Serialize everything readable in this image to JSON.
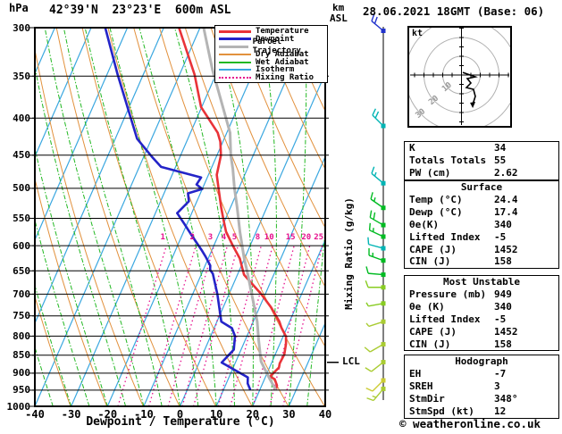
{
  "header": {
    "pressure_unit": "hPa",
    "title": "42°39'N  23°23'E  600m ASL",
    "altitude_unit": "km",
    "altitude_ref": "ASL",
    "date": "28.06.2021 18GMT (Base: 06)"
  },
  "legend": {
    "items": [
      {
        "label": "Temperature",
        "color": "#e93338",
        "style": "solid",
        "thick": 3
      },
      {
        "label": "Dewpoint",
        "color": "#2424c8",
        "style": "solid",
        "thick": 3
      },
      {
        "label": "Parcel Trajectory",
        "color": "#b4b4b4",
        "style": "solid",
        "thick": 3
      },
      {
        "label": "Dry Adiabat",
        "color": "#e2913d",
        "style": "solid",
        "thick": 1
      },
      {
        "label": "Wet Adiabat",
        "color": "#22b822",
        "style": "solid",
        "thick": 1
      },
      {
        "label": "Isotherm",
        "color": "#3aa7e0",
        "style": "solid",
        "thick": 1
      },
      {
        "label": "Mixing Ratio",
        "color": "#e6118e",
        "style": "dotted",
        "thick": 1
      }
    ]
  },
  "axes": {
    "x_label": "Dewpoint / Temperature (°C)",
    "x_ticks": [
      -40,
      -30,
      -20,
      -10,
      0,
      10,
      20,
      30,
      40
    ],
    "pressure_ticks": [
      300,
      350,
      400,
      450,
      500,
      550,
      600,
      650,
      700,
      750,
      800,
      850,
      900,
      950,
      1000
    ],
    "mixing_ratio_label": "Mixing Ratio (g/kg)",
    "mixing_ratio_values": [
      1,
      2,
      3,
      4,
      5,
      8,
      10,
      15,
      20,
      25
    ],
    "lcl_label": "LCL"
  },
  "chart_data": {
    "type": "skewt-log-p sounding",
    "pressure_range_hpa": [
      300,
      1000
    ],
    "temperature_range_c": [
      -40,
      40
    ],
    "isotherm_step_c": 10,
    "dry_adiabat_step_k": 10,
    "wet_adiabat_step_c": 5,
    "series": [
      {
        "name": "temperature",
        "color": "#e93338",
        "points_p_t": [
          [
            949,
            24.4
          ],
          [
            936,
            24.2
          ],
          [
            917,
            22.8
          ],
          [
            910,
            21.2
          ],
          [
            884,
            22.6
          ],
          [
            872,
            22.3
          ],
          [
            848,
            22.5
          ],
          [
            820,
            21.7
          ],
          [
            801,
            20.8
          ],
          [
            779,
            18.5
          ],
          [
            764,
            17.2
          ],
          [
            730,
            13.2
          ],
          [
            700,
            8.9
          ],
          [
            658,
            1.8
          ],
          [
            625,
            -1.3
          ],
          [
            599,
            -4.9
          ],
          [
            574,
            -8.3
          ],
          [
            553,
            -10.4
          ],
          [
            531,
            -12.6
          ],
          [
            500,
            -15.6
          ],
          [
            479,
            -17.7
          ],
          [
            450,
            -18.9
          ],
          [
            431,
            -20.7
          ],
          [
            419,
            -22.5
          ],
          [
            386,
            -30.2
          ],
          [
            348,
            -35.9
          ],
          [
            300,
            -45.8
          ]
        ]
      },
      {
        "name": "dewpoint",
        "color": "#2424c8",
        "points_p_t": [
          [
            949,
            17.4
          ],
          [
            930,
            15.9
          ],
          [
            912,
            15.2
          ],
          [
            870,
            6.2
          ],
          [
            835,
            8.0
          ],
          [
            800,
            6.7
          ],
          [
            780,
            4.9
          ],
          [
            764,
            1.2
          ],
          [
            730,
            -1.1
          ],
          [
            700,
            -3.2
          ],
          [
            656,
            -6.9
          ],
          [
            648,
            -8.1
          ],
          [
            639,
            -8.6
          ],
          [
            621,
            -11.0
          ],
          [
            610,
            -12.6
          ],
          [
            582,
            -17.1
          ],
          [
            560,
            -20.7
          ],
          [
            541,
            -24.0
          ],
          [
            521,
            -22.2
          ],
          [
            508,
            -23.4
          ],
          [
            501,
            -20.0
          ],
          [
            494,
            -22.1
          ],
          [
            483,
            -21.7
          ],
          [
            467,
            -34.0
          ],
          [
            454,
            -37.3
          ],
          [
            427,
            -44.0
          ],
          [
            348,
            -57.1
          ],
          [
            300,
            -66.1
          ]
        ]
      },
      {
        "name": "parcel_trajectory",
        "color": "#b4b4b4",
        "points_p_t": [
          [
            949,
            24.4
          ],
          [
            912,
            21.0
          ],
          [
            867,
            16.9
          ],
          [
            810,
            13.7
          ],
          [
            764,
            11.1
          ],
          [
            656,
            2.7
          ],
          [
            625,
            -0.1
          ],
          [
            574,
            -4.5
          ],
          [
            531,
            -8.2
          ],
          [
            500,
            -11.2
          ],
          [
            470,
            -14.0
          ],
          [
            450,
            -16.2
          ],
          [
            419,
            -19.1
          ],
          [
            343,
            -31.5
          ],
          [
            300,
            -39.0
          ]
        ]
      }
    ],
    "lcl_pressure_hpa": 867
  },
  "wind_barbs": [
    {
      "p": 303,
      "color": "#2233cc",
      "angle": -50,
      "full": 2,
      "half": 0
    },
    {
      "p": 410,
      "color": "#00b4b4",
      "angle": -45,
      "full": 2,
      "half": 0
    },
    {
      "p": 492,
      "color": "#00b4b4",
      "angle": -50,
      "full": 1,
      "half": 1
    },
    {
      "p": 532,
      "color": "#00bb22",
      "angle": -55,
      "full": 1,
      "half": 1
    },
    {
      "p": 562,
      "color": "#00bb22",
      "angle": -60,
      "full": 2,
      "half": 0
    },
    {
      "p": 583,
      "color": "#00bb22",
      "angle": -65,
      "full": 1,
      "half": 1
    },
    {
      "p": 605,
      "color": "#00b4b4",
      "angle": -75,
      "full": 1,
      "half": 0
    },
    {
      "p": 629,
      "color": "#00bb22",
      "angle": -70,
      "full": 1,
      "half": 1
    },
    {
      "p": 658,
      "color": "#00bb22",
      "angle": -85,
      "full": 1,
      "half": 0
    },
    {
      "p": 685,
      "color": "#88cc22",
      "angle": -90,
      "full": 1,
      "half": 0
    },
    {
      "p": 721,
      "color": "#88cc22",
      "angle": -100,
      "full": 0,
      "half": 1
    },
    {
      "p": 764,
      "color": "#aacc33",
      "angle": -108,
      "full": 0,
      "half": 1
    },
    {
      "p": 821,
      "color": "#aacc33",
      "angle": -120,
      "full": 1,
      "half": 0
    },
    {
      "p": 869,
      "color": "#aacc33",
      "angle": -128,
      "full": 1,
      "half": 0
    },
    {
      "p": 921,
      "color": "#cccc33",
      "angle": -135,
      "full": 1,
      "half": 0
    },
    {
      "p": 946,
      "color": "#aacc33",
      "angle": -140,
      "full": 1,
      "half": 1
    }
  ],
  "hodograph": {
    "unit_label": "kt",
    "ring_labels": [
      10,
      20,
      30
    ],
    "ring_step_kt": 10,
    "trace_kt": [
      [
        0.7,
        -1.4
      ],
      [
        7.4,
        1.0
      ],
      [
        3.1,
        1.9
      ],
      [
        5.0,
        4.3
      ],
      [
        2.6,
        6.7
      ],
      [
        6.4,
        7.6
      ],
      [
        7.4,
        11.4
      ],
      [
        6.0,
        15.7
      ]
    ]
  },
  "tables": [
    {
      "header": null,
      "rows": [
        [
          "K",
          "34"
        ],
        [
          "Totals Totals",
          "55"
        ],
        [
          "PW (cm)",
          "2.62"
        ]
      ]
    },
    {
      "header": "Surface",
      "rows": [
        [
          "Temp (°C)",
          "24.4"
        ],
        [
          "Dewp (°C)",
          "17.4"
        ],
        [
          "θe(K)",
          "340"
        ],
        [
          "Lifted Index",
          "-5"
        ],
        [
          "CAPE (J)",
          "1452"
        ],
        [
          "CIN (J)",
          "158"
        ]
      ]
    },
    {
      "header": "Most Unstable",
      "rows": [
        [
          "Pressure (mb)",
          "949"
        ],
        [
          "θe (K)",
          "340"
        ],
        [
          "Lifted Index",
          "-5"
        ],
        [
          "CAPE (J)",
          "1452"
        ],
        [
          "CIN (J)",
          "158"
        ]
      ]
    },
    {
      "header": "Hodograph",
      "rows": [
        [
          "EH",
          "-7"
        ],
        [
          "SREH",
          "3"
        ],
        [
          "StmDir",
          "348°"
        ],
        [
          "StmSpd (kt)",
          "12"
        ]
      ]
    }
  ],
  "footer": {
    "text": "© weatheronline.co.uk"
  }
}
